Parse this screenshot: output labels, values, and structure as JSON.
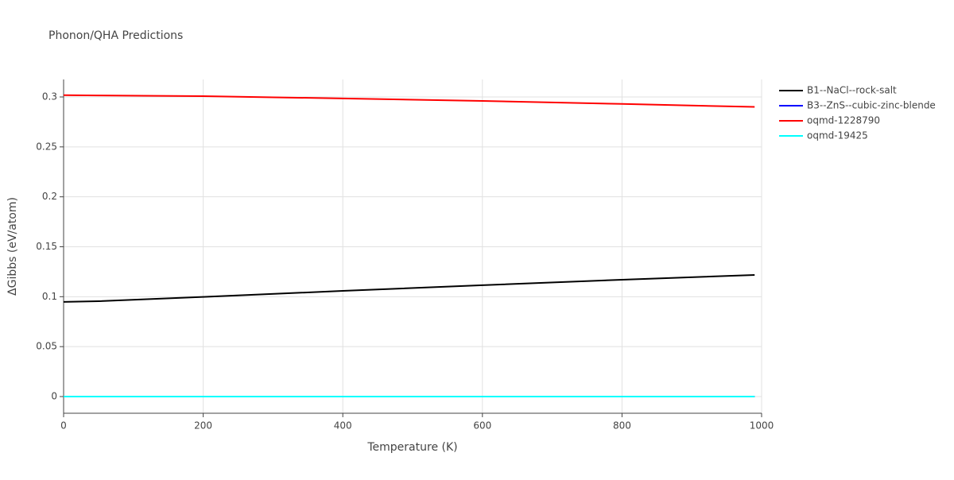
{
  "chart_data": {
    "type": "line",
    "title": "Phonon/QHA Predictions",
    "x_label": "Temperature (K)",
    "y_label": "ΔGibbs (eV/atom)",
    "x": [
      0,
      50,
      200,
      400,
      600,
      800,
      990
    ],
    "series": [
      {
        "name": "B1--NaCl--rock-salt",
        "color": "#000000",
        "values": [
          0.0948,
          0.0955,
          0.0998,
          0.1058,
          0.1115,
          0.117,
          0.1218
        ]
      },
      {
        "name": "B3--ZnS--cubic-zinc-blende",
        "color": "#0000ff",
        "values": [
          0,
          0,
          0,
          0,
          0,
          0,
          0
        ]
      },
      {
        "name": "oqmd-1228790",
        "color": "#ff0000",
        "values": [
          0.3018,
          0.3015,
          0.3008,
          0.2985,
          0.296,
          0.293,
          0.29
        ]
      },
      {
        "name": "oqmd-19425",
        "color": "#00ffff",
        "values": [
          0,
          0,
          0,
          0,
          0,
          0,
          0
        ]
      }
    ],
    "xlim": [
      0,
      1000
    ],
    "xticks": [
      0,
      200,
      400,
      600,
      800,
      1000
    ],
    "ylim": [
      -0.0167,
      0.3175
    ],
    "yticks": [
      0,
      0.05,
      0.1,
      0.15,
      0.2,
      0.25,
      0.3
    ],
    "grid": true,
    "legend": "right"
  }
}
